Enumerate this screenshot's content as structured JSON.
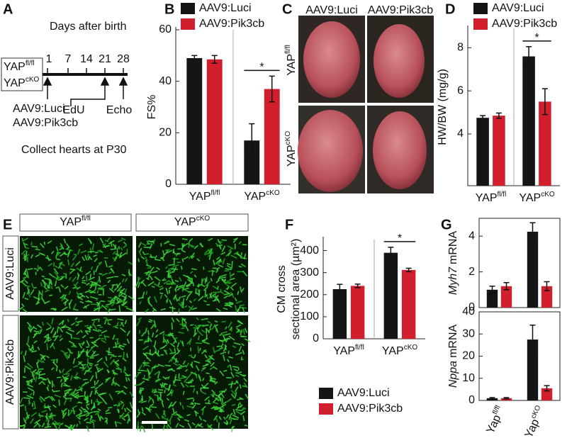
{
  "panels": {
    "A": {
      "letter": "A",
      "title": "Days after birth",
      "groups": [
        {
          "base": "YAP",
          "sup": "fl/fl"
        },
        {
          "base": "YAP",
          "sup": "cKO"
        }
      ],
      "days": [
        "1",
        "7",
        "14",
        "21",
        "28"
      ],
      "injections": [
        "AAV9:Luci",
        "AAV9:Pik3cb"
      ],
      "edu": "EdU",
      "echo": "Echo",
      "footer": "Collect hearts at P30"
    },
    "C": {
      "letter": "C",
      "columns": [
        "AAV9:Luci",
        "AAV9:Pik3cb"
      ],
      "rows": [
        {
          "base": "YAP",
          "sup": "fl/fl"
        },
        {
          "base": "YAP",
          "sup": "cKO"
        }
      ]
    },
    "E": {
      "letter": "E",
      "columns": [
        {
          "base": "YAP",
          "sup": "fl/fl"
        },
        {
          "base": "YAP",
          "sup": "cKO"
        }
      ],
      "rows": [
        "AAV9:Luci",
        "AAV9:Pik3cb"
      ]
    }
  },
  "chart_data": [
    {
      "type": "bar",
      "panel": "B",
      "ylabel": "FS%",
      "categories": [
        "YAP",
        "YAP"
      ],
      "category_sups": [
        "fl/fl",
        "cKO"
      ],
      "series": [
        {
          "name": "AAV9:Luci",
          "color": "#151515",
          "values": [
            49,
            17
          ],
          "errors": [
            1,
            6.5
          ]
        },
        {
          "name": "AAV9:Pik3cb",
          "color": "#d11f2e",
          "values": [
            48.5,
            37
          ],
          "errors": [
            1.5,
            5
          ]
        }
      ],
      "ylim": [
        0,
        60
      ],
      "yticks": [
        0,
        20,
        40,
        60
      ],
      "legend": "top",
      "separator": true,
      "annotation": "*"
    },
    {
      "type": "bar",
      "panel": "D",
      "ylabel": "HW/BW (mg/g)",
      "categories": [
        "YAP",
        "YAP"
      ],
      "category_sups": [
        "fl/fl",
        "cKO"
      ],
      "series": [
        {
          "name": "AAV9:Luci",
          "color": "#151515",
          "values": [
            4.75,
            7.6
          ],
          "errors": [
            0.1,
            0.45
          ]
        },
        {
          "name": "AAV9:Pik3cb",
          "color": "#d11f2e",
          "values": [
            4.85,
            5.5
          ],
          "errors": [
            0.12,
            0.6
          ]
        }
      ],
      "ylim": [
        1.6,
        8.9
      ],
      "yticks": [
        4,
        6,
        8
      ],
      "legend": "top",
      "separator": true,
      "annotation": "*"
    },
    {
      "type": "bar",
      "panel": "F",
      "ylabel": [
        "CM cross",
        "sectional area (µm²)"
      ],
      "categories": [
        "YAP",
        "YAP"
      ],
      "category_sups": [
        "fl/fl",
        "cKO"
      ],
      "series": [
        {
          "name": "AAV9:Luci",
          "color": "#151515",
          "values": [
            225,
            390
          ],
          "errors": [
            22,
            25
          ]
        },
        {
          "name": "AAV9:Pik3cb",
          "color": "#d11f2e",
          "values": [
            240,
            312
          ],
          "errors": [
            8,
            8
          ]
        }
      ],
      "ylim": [
        0,
        450
      ],
      "yticks": [
        0,
        100,
        200,
        300,
        400
      ],
      "legend": "below",
      "separator": true,
      "annotation": "*"
    },
    {
      "type": "bar",
      "panel": "G",
      "ylabel_italic": "Myh7",
      "ylabel": "mRNA",
      "series": [
        {
          "color": "#151515",
          "values": [
            1.0,
            4.25
          ],
          "errors": [
            0.2,
            0.5
          ]
        },
        {
          "color": "#d11f2e",
          "values": [
            1.2,
            1.2
          ],
          "errors": [
            0.2,
            0.25
          ]
        }
      ],
      "ylim": [
        0,
        5
      ],
      "yticks": [
        0,
        2,
        4
      ]
    },
    {
      "type": "bar",
      "ylabel_italic": "Nppa",
      "ylabel": "mRNA",
      "categories": [
        "Yap",
        "Yap"
      ],
      "category_sups": [
        "fl/fl",
        "cKO"
      ],
      "series": [
        {
          "color": "#151515",
          "values": [
            1,
            27.5
          ],
          "errors": [
            0.3,
            6.5
          ]
        },
        {
          "color": "#d11f2e",
          "values": [
            1,
            5.5
          ],
          "errors": [
            0.3,
            1.2
          ]
        }
      ],
      "ylim": [
        0,
        40
      ],
      "yticks": [
        0,
        10,
        20,
        30,
        40
      ]
    }
  ]
}
